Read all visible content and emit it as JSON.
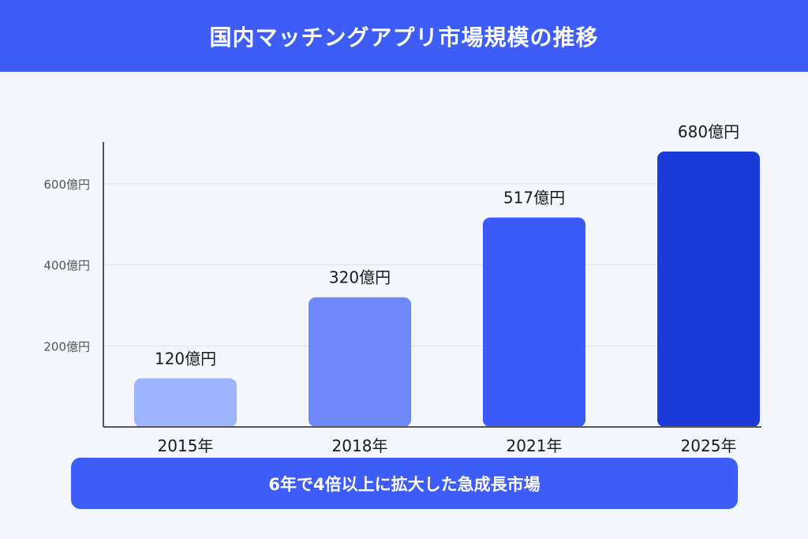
{
  "header": {
    "title": "国内マッチングアプリ市場規模の推移"
  },
  "chart_data": {
    "type": "bar",
    "title": "国内マッチングアプリ市場規模の推移",
    "categories": [
      "2015年",
      "2018年",
      "2021年",
      "2025年"
    ],
    "values": [
      120,
      320,
      517,
      680
    ],
    "value_labels": [
      "120億円",
      "320億円",
      "517億円",
      "680億円"
    ],
    "bar_colors": [
      "#9eb3ff",
      "#6e88fb",
      "#3b5bf8",
      "#1a3bd8"
    ],
    "yticks": [
      200,
      400,
      600
    ],
    "ytick_labels": [
      "200億円",
      "400億円",
      "600億円"
    ],
    "ylim": [
      0,
      700
    ],
    "grid": true,
    "xlabel": "",
    "ylabel": ""
  },
  "footer": {
    "text": "6年で4倍以上に拡大した急成長市場"
  },
  "colors": {
    "accent": "#3d5cf8",
    "background": "#f3f6fc",
    "grid": "#dde2ec",
    "axis": "#555555",
    "label_text": "#1a1a1a",
    "tick_text": "#555555"
  }
}
